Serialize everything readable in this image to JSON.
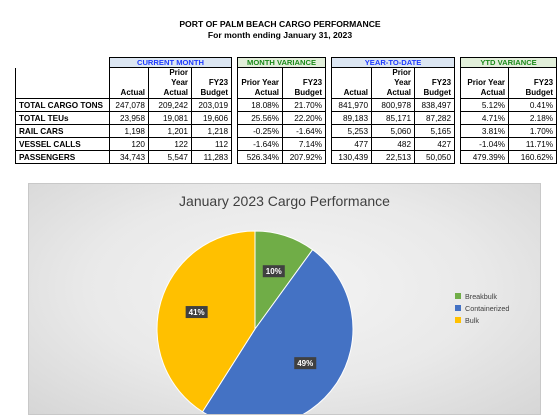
{
  "header": {
    "title": "PORT OF PALM BEACH CARGO PERFORMANCE",
    "subtitle": "For month ending January 31, 2023"
  },
  "table": {
    "groups": {
      "current_month": "CURRENT MONTH",
      "month_variance": "MONTH VARIANCE",
      "year_to_date": "YEAR-TO-DATE",
      "ytd_variance": "YTD VARIANCE"
    },
    "columns": {
      "cm_actual": "Actual",
      "cm_prior": "Prior Year Actual",
      "cm_budget": "FY23 Budget",
      "mv_prior": "Prior Year Actual",
      "mv_budget": "FY23 Budget",
      "ytd_actual": "Actual",
      "ytd_prior": "Prior Year Actual",
      "ytd_budget": "FY23 Budget",
      "yv_prior": "Prior Year Actual",
      "yv_budget": "FY23 Budget"
    },
    "rows": [
      {
        "label": "TOTAL CARGO TONS",
        "v": [
          "247,078",
          "209,242",
          "203,019",
          "18.08%",
          "21.70%",
          "841,970",
          "800,978",
          "838,497",
          "5.12%",
          "0.41%"
        ]
      },
      {
        "label": "TOTAL TEUs",
        "v": [
          "23,958",
          "19,081",
          "19,606",
          "25.56%",
          "22.20%",
          "89,183",
          "85,171",
          "87,282",
          "4.71%",
          "2.18%"
        ]
      },
      {
        "label": "RAIL CARS",
        "v": [
          "1,198",
          "1,201",
          "1,218",
          "-0.25%",
          "-1.64%",
          "5,253",
          "5,060",
          "5,165",
          "3.81%",
          "1.70%"
        ]
      },
      {
        "label": "VESSEL CALLS",
        "v": [
          "120",
          "122",
          "112",
          "-1.64%",
          "7.14%",
          "477",
          "482",
          "427",
          "-1.04%",
          "11.71%"
        ]
      },
      {
        "label": "PASSENGERS",
        "v": [
          "34,743",
          "5,547",
          "11,283",
          "526.34%",
          "207.92%",
          "130,439",
          "22,513",
          "50,050",
          "479.39%",
          "160.62%"
        ]
      }
    ]
  },
  "chart_data": {
    "type": "pie",
    "title": "January 2023 Cargo Performance",
    "categories": [
      "Breakbulk",
      "Containerized",
      "Bulk"
    ],
    "values": [
      10,
      49,
      41
    ],
    "labels": [
      "10%",
      "49%",
      "41%"
    ],
    "colors": [
      "#70ad47",
      "#4472c4",
      "#ffc000"
    ],
    "legend_position": "right"
  }
}
